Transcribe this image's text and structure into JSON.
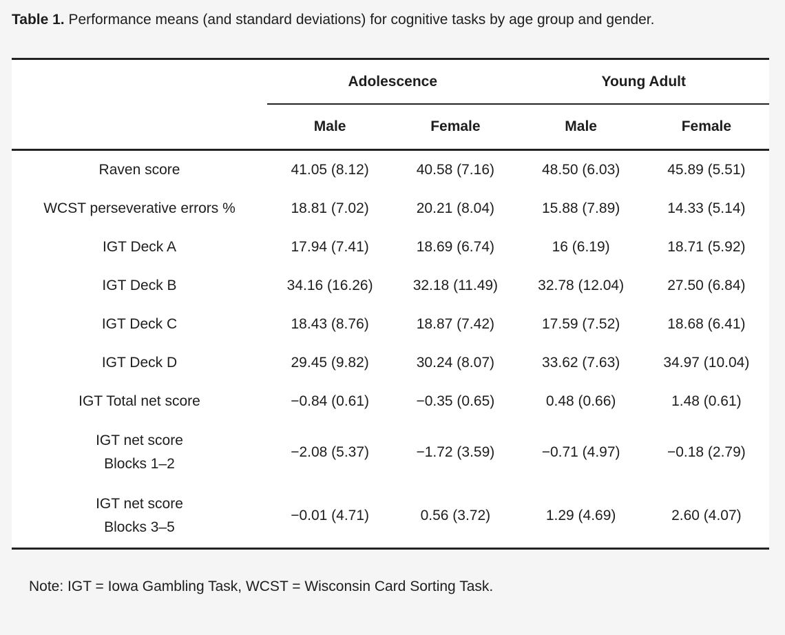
{
  "caption": {
    "label": "Table 1.",
    "text": " Performance means (and standard deviations) for cognitive tasks by age group and gender."
  },
  "table": {
    "groups": [
      "Adolescence",
      "Young Adult"
    ],
    "sub_columns": [
      "Male",
      "Female",
      "Male",
      "Female"
    ],
    "rows": [
      {
        "label": [
          "Raven score"
        ],
        "values": [
          "41.05 (8.12)",
          "40.58 (7.16)",
          "48.50 (6.03)",
          "45.89 (5.51)"
        ]
      },
      {
        "label": [
          "WCST perseverative errors %"
        ],
        "values": [
          "18.81 (7.02)",
          "20.21 (8.04)",
          "15.88 (7.89)",
          "14.33 (5.14)"
        ]
      },
      {
        "label": [
          "IGT Deck A"
        ],
        "values": [
          "17.94 (7.41)",
          "18.69 (6.74)",
          "16 (6.19)",
          "18.71 (5.92)"
        ]
      },
      {
        "label": [
          "IGT Deck B"
        ],
        "values": [
          "34.16 (16.26)",
          "32.18 (11.49)",
          "32.78 (12.04)",
          "27.50 (6.84)"
        ]
      },
      {
        "label": [
          "IGT Deck C"
        ],
        "values": [
          "18.43 (8.76)",
          "18.87 (7.42)",
          "17.59 (7.52)",
          "18.68 (6.41)"
        ]
      },
      {
        "label": [
          "IGT Deck D"
        ],
        "values": [
          "29.45 (9.82)",
          "30.24 (8.07)",
          "33.62 (7.63)",
          "34.97 (10.04)"
        ]
      },
      {
        "label": [
          "IGT Total net score"
        ],
        "values": [
          "−0.84 (0.61)",
          "−0.35 (0.65)",
          "0.48 (0.66)",
          "1.48 (0.61)"
        ]
      },
      {
        "label": [
          "IGT net score",
          "Blocks 1–2"
        ],
        "values": [
          "−2.08 (5.37)",
          "−1.72 (3.59)",
          "−0.71 (4.97)",
          "−0.18 (2.79)"
        ]
      },
      {
        "label": [
          "IGT net score",
          "Blocks 3–5"
        ],
        "values": [
          "−0.01 (4.71)",
          "0.56 (3.72)",
          "1.29 (4.69)",
          "2.60 (4.07)"
        ]
      }
    ]
  },
  "note": "Note: IGT = Iowa Gambling Task, WCST = Wisconsin Card Sorting Task.",
  "colors": {
    "page_background": "#f5f5f5",
    "table_background": "#ffffff",
    "text": "#1d1d1d",
    "rule": "#222222"
  }
}
